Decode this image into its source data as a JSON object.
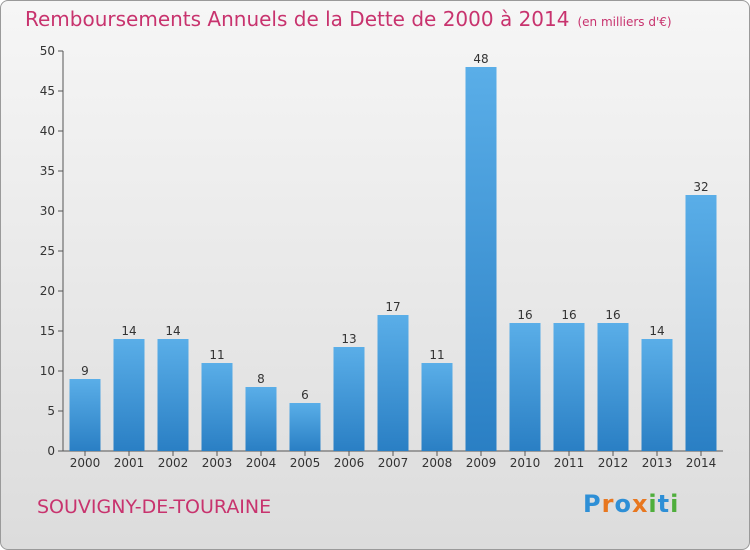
{
  "title": "Remboursements Annuels de la Dette de 2000 à 2014",
  "unit_note": "(en milliers d'€)",
  "city": "SOUVIGNY-DE-TOURAINE",
  "logo": {
    "text": "Proxiti",
    "letters": [
      {
        "ch": "P",
        "color": "#2e8fd6"
      },
      {
        "ch": "r",
        "color": "#e8771f"
      },
      {
        "ch": "o",
        "color": "#2e8fd6"
      },
      {
        "ch": "x",
        "color": "#e8771f"
      },
      {
        "ch": "i",
        "color": "#4fae3c"
      },
      {
        "ch": "t",
        "color": "#2e8fd6"
      },
      {
        "ch": "i",
        "color": "#4fae3c"
      }
    ]
  },
  "colors": {
    "title": "#c8336e",
    "bar_light": "#5aaee8",
    "bar_dark": "#2a7fc4",
    "axis": "#555555"
  },
  "chart_data": {
    "type": "bar",
    "title": "Remboursements Annuels de la Dette de 2000 à 2014",
    "xlabel": "",
    "ylabel": "",
    "ylim": [
      0,
      50
    ],
    "yticks": [
      0,
      5,
      10,
      15,
      20,
      25,
      30,
      35,
      40,
      45,
      50
    ],
    "grid": false,
    "categories": [
      "2000",
      "2001",
      "2002",
      "2003",
      "2004",
      "2005",
      "2006",
      "2007",
      "2008",
      "2009",
      "2010",
      "2011",
      "2012",
      "2013",
      "2014"
    ],
    "values": [
      9,
      14,
      14,
      11,
      8,
      6,
      13,
      17,
      11,
      48,
      16,
      16,
      16,
      14,
      32
    ]
  }
}
